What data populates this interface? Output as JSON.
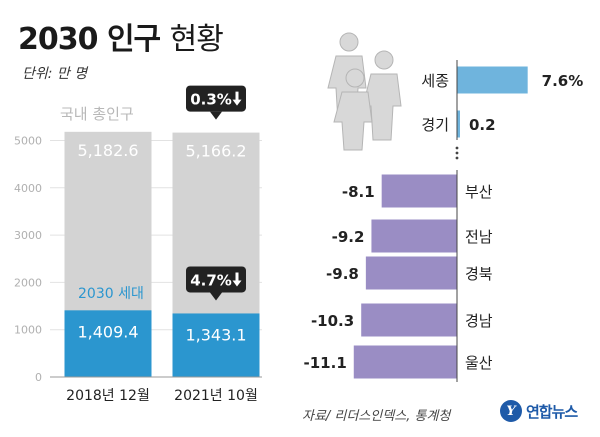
{
  "title_bold": "2030 인구",
  "title_light": "현황",
  "unit_label": "단위: 만 명",
  "source": "자료/ 리더스인덱스, 통계청",
  "logo_text": "연합뉴스",
  "logo_mark": "Y",
  "colors": {
    "total_bar": "#d3d3d3",
    "gen_bar": "#2b96cf",
    "pos_bar": "#6fb4dd",
    "neg_bar": "#9a8dc4",
    "badge": "#222222",
    "gen_label": "#2b96cf"
  },
  "chart_data": [
    {
      "type": "bar",
      "categories": [
        "2018년 12월",
        "2021년 10월"
      ],
      "ylim": [
        0,
        5200
      ],
      "yticks": [
        0,
        1000,
        2000,
        3000,
        4000,
        5000
      ],
      "series": [
        {
          "name": "국내 총인구",
          "values": [
            5182.6,
            5166.2
          ],
          "labels": [
            "5,182.6",
            "5,166.2"
          ]
        },
        {
          "name": "2030 세대",
          "values": [
            1409.4,
            1343.1
          ],
          "labels": [
            "1,409.4",
            "1,343.1"
          ]
        }
      ],
      "annotations": [
        {
          "target": "국내 총인구",
          "category": "2021년 10월",
          "text": "0.3%",
          "direction": "down"
        },
        {
          "target": "2030 세대",
          "category": "2021년 10월",
          "text": "4.7%",
          "direction": "down"
        }
      ]
    },
    {
      "type": "bar",
      "orientation": "horizontal",
      "categories": [
        "세종",
        "경기",
        "부산",
        "전남",
        "경북",
        "경남",
        "울산"
      ],
      "values": [
        7.6,
        0.2,
        -8.1,
        -9.2,
        -9.8,
        -10.3,
        -11.1
      ],
      "value_labels": [
        "7.6%",
        "0.2",
        "-8.1",
        "-9.2",
        "-9.8",
        "-10.3",
        "-11.1"
      ],
      "gap_after_index": 1
    }
  ]
}
